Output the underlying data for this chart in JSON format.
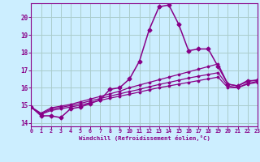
{
  "xlabel": "Windchill (Refroidissement éolien,°C)",
  "bg_color": "#cceeff",
  "grid_color": "#aacccc",
  "line_color": "#880088",
  "x_ticks": [
    0,
    1,
    2,
    3,
    4,
    5,
    6,
    7,
    8,
    9,
    10,
    11,
    12,
    13,
    14,
    15,
    16,
    17,
    18,
    19,
    20,
    21,
    22,
    23
  ],
  "y_ticks": [
    14,
    15,
    16,
    17,
    18,
    19,
    20
  ],
  "xlim": [
    0,
    23
  ],
  "ylim": [
    13.8,
    20.8
  ],
  "series": [
    {
      "x": [
        0,
        1,
        2,
        3,
        4,
        5,
        6,
        7,
        8,
        9,
        10,
        11,
        12,
        13,
        14,
        15,
        16,
        17,
        18,
        19,
        20,
        21,
        22,
        23
      ],
      "y": [
        14.9,
        14.4,
        14.4,
        14.3,
        14.8,
        14.9,
        15.1,
        15.3,
        15.9,
        16.0,
        16.5,
        17.5,
        19.3,
        20.6,
        20.7,
        19.6,
        18.1,
        18.2,
        18.2,
        17.2,
        16.2,
        16.1,
        16.4,
        16.4
      ],
      "marker": "D",
      "ms": 2.5,
      "lw": 1.1
    },
    {
      "x": [
        0,
        1,
        2,
        3,
        4,
        5,
        6,
        7,
        8,
        9,
        10,
        11,
        12,
        13,
        14,
        15,
        16,
        17,
        18,
        19,
        20,
        21,
        22,
        23
      ],
      "y": [
        14.9,
        14.55,
        14.85,
        14.95,
        15.05,
        15.2,
        15.35,
        15.5,
        15.65,
        15.8,
        16.0,
        16.15,
        16.3,
        16.45,
        16.6,
        16.75,
        16.9,
        17.05,
        17.2,
        17.35,
        16.2,
        16.1,
        16.35,
        16.45
      ],
      "marker": "D",
      "ms": 1.5,
      "lw": 0.9
    },
    {
      "x": [
        0,
        1,
        2,
        3,
        4,
        5,
        6,
        7,
        8,
        9,
        10,
        11,
        12,
        13,
        14,
        15,
        16,
        17,
        18,
        19,
        20,
        21,
        22,
        23
      ],
      "y": [
        14.9,
        14.5,
        14.78,
        14.88,
        14.98,
        15.1,
        15.25,
        15.38,
        15.52,
        15.65,
        15.78,
        15.9,
        16.05,
        16.18,
        16.3,
        16.42,
        16.55,
        16.65,
        16.75,
        16.85,
        16.1,
        16.0,
        16.25,
        16.35
      ],
      "marker": "D",
      "ms": 1.5,
      "lw": 0.9
    },
    {
      "x": [
        0,
        1,
        2,
        3,
        4,
        5,
        6,
        7,
        8,
        9,
        10,
        11,
        12,
        13,
        14,
        15,
        16,
        17,
        18,
        19,
        20,
        21,
        22,
        23
      ],
      "y": [
        14.9,
        14.48,
        14.7,
        14.8,
        14.9,
        15.0,
        15.15,
        15.28,
        15.4,
        15.52,
        15.63,
        15.75,
        15.88,
        16.0,
        16.1,
        16.2,
        16.3,
        16.4,
        16.5,
        16.6,
        16.0,
        16.0,
        16.2,
        16.3
      ],
      "marker": "D",
      "ms": 1.5,
      "lw": 0.9
    }
  ]
}
